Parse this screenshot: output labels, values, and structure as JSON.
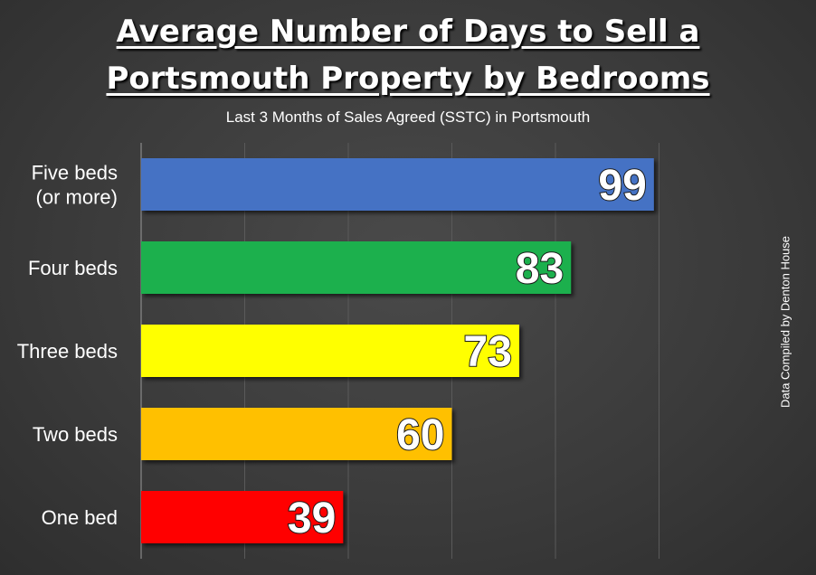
{
  "header": {
    "title_line1": "Average Number of Days to Sell a",
    "title_line2": "Portsmouth Property by Bedrooms",
    "subtitle": "Last 3 Months of Sales Agreed (SSTC) in Portsmouth"
  },
  "source_note": "Data Compiled by Denton House",
  "chart_data": {
    "type": "bar",
    "orientation": "horizontal",
    "title": "Average Number of Days to Sell a Portsmouth Property by Bedrooms",
    "subtitle": "Last 3 Months of Sales Agreed (SSTC) in Portsmouth",
    "categories": [
      [
        "Five beds",
        "(or more)"
      ],
      [
        "Four beds"
      ],
      [
        "Three beds"
      ],
      [
        "Two beds"
      ],
      [
        "One bed"
      ]
    ],
    "values": [
      99,
      83,
      73,
      60,
      39
    ],
    "colors": [
      "#4472c4",
      "#1db04e",
      "#ffff00",
      "#ffc000",
      "#ff0000"
    ],
    "xlim": [
      0,
      120
    ],
    "grid": true,
    "data_labels": true
  }
}
